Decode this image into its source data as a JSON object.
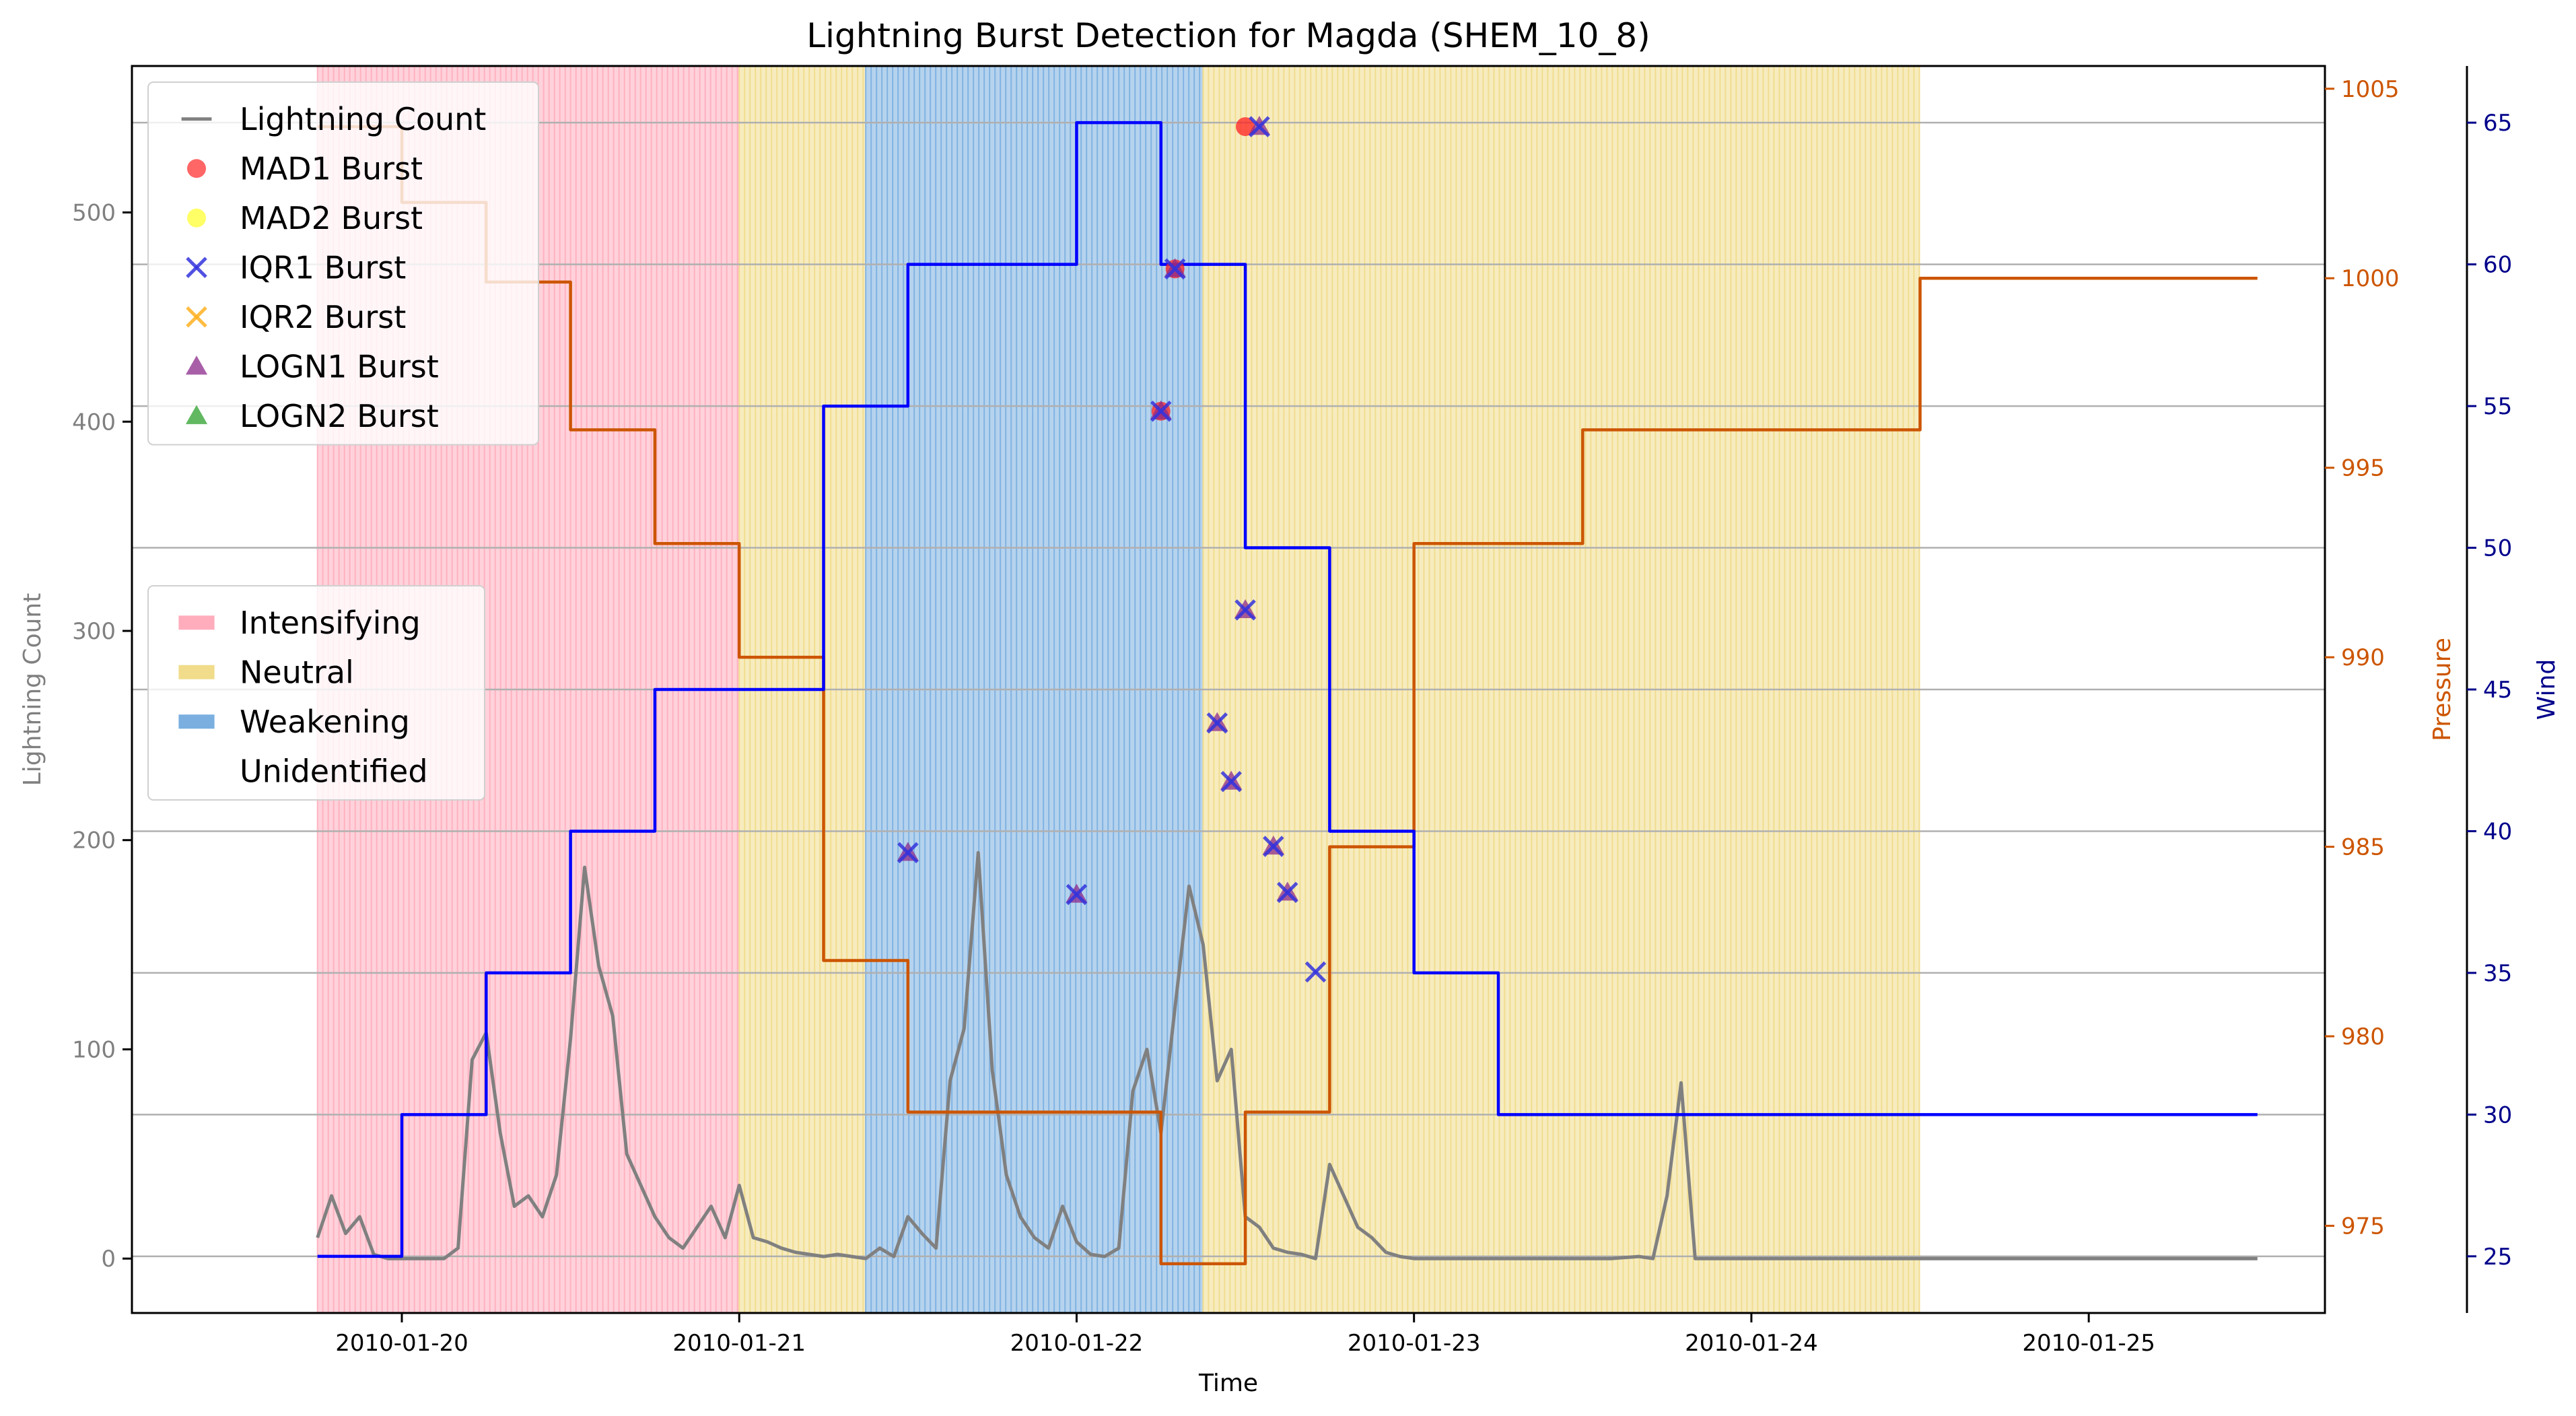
{
  "chart_data": {
    "type": "line",
    "title": "Lightning Burst Detection for Magda (SHEM_10_8)",
    "xlabel": "Time",
    "x_range": [
      "2010-01-19 04:48",
      "2010-01-25 16:48"
    ],
    "x_ticks": [
      "2010-01-20",
      "2010-01-21",
      "2010-01-22",
      "2010-01-23",
      "2010-01-24",
      "2010-01-25"
    ],
    "grid": "horizontal",
    "axes": {
      "left": {
        "label": "Lightning Count",
        "ylim": [
          -26,
          570
        ],
        "ticks": [
          0,
          100,
          200,
          300,
          400,
          500
        ],
        "color": "#808080"
      },
      "right1": {
        "label": "Pressure",
        "ylim": [
          972.7,
          1005.6
        ],
        "ticks": [
          975,
          980,
          985,
          990,
          995,
          1000,
          1005
        ],
        "color": "#cc5500"
      },
      "right2": {
        "label": "Wind",
        "ylim": [
          23.0,
          67.0
        ],
        "ticks": [
          25,
          30,
          35,
          40,
          45,
          50,
          55,
          60,
          65
        ],
        "color": "#00008b"
      }
    },
    "regimes": [
      {
        "label": "Intensifying",
        "start": "2010-01-19 18:00",
        "end": "2010-01-21 00:00",
        "color": "#ffadbd"
      },
      {
        "label": "Neutral",
        "start": "2010-01-21 00:00",
        "end": "2010-01-21 09:00",
        "color": "#f0dc8a"
      },
      {
        "label": "Weakening",
        "start": "2010-01-21 09:00",
        "end": "2010-01-22 09:00",
        "color": "#7aafe0"
      },
      {
        "label": "Neutral",
        "start": "2010-01-22 09:00",
        "end": "2010-01-24 12:00",
        "color": "#f0dc8a"
      }
    ],
    "series": [
      {
        "name": "Lightning Count",
        "axis": "left",
        "color": "#808080",
        "x": [
          "2010-01-19 18:00",
          "2010-01-19 19:00",
          "2010-01-19 20:00",
          "2010-01-19 21:00",
          "2010-01-19 22:00",
          "2010-01-19 23:00",
          "2010-01-20 00:00",
          "2010-01-20 01:00",
          "2010-01-20 02:00",
          "2010-01-20 03:00",
          "2010-01-20 04:00",
          "2010-01-20 05:00",
          "2010-01-20 06:00",
          "2010-01-20 07:00",
          "2010-01-20 08:00",
          "2010-01-20 09:00",
          "2010-01-20 10:00",
          "2010-01-20 11:00",
          "2010-01-20 12:00",
          "2010-01-20 13:00",
          "2010-01-20 14:00",
          "2010-01-20 15:00",
          "2010-01-20 16:00",
          "2010-01-20 17:00",
          "2010-01-20 18:00",
          "2010-01-20 19:00",
          "2010-01-20 20:00",
          "2010-01-20 21:00",
          "2010-01-20 22:00",
          "2010-01-20 23:00",
          "2010-01-21 00:00",
          "2010-01-21 01:00",
          "2010-01-21 02:00",
          "2010-01-21 03:00",
          "2010-01-21 04:00",
          "2010-01-21 05:00",
          "2010-01-21 06:00",
          "2010-01-21 07:00",
          "2010-01-21 08:00",
          "2010-01-21 09:00",
          "2010-01-21 10:00",
          "2010-01-21 11:00",
          "2010-01-21 12:00",
          "2010-01-21 13:00",
          "2010-01-21 14:00",
          "2010-01-21 15:00",
          "2010-01-21 16:00",
          "2010-01-21 17:00",
          "2010-01-21 18:00",
          "2010-01-21 19:00",
          "2010-01-21 20:00",
          "2010-01-21 21:00",
          "2010-01-21 22:00",
          "2010-01-21 23:00",
          "2010-01-22 00:00",
          "2010-01-22 01:00",
          "2010-01-22 02:00",
          "2010-01-22 03:00",
          "2010-01-22 04:00",
          "2010-01-22 05:00",
          "2010-01-22 06:00",
          "2010-01-22 07:00",
          "2010-01-22 08:00",
          "2010-01-22 09:00",
          "2010-01-22 10:00",
          "2010-01-22 11:00",
          "2010-01-22 12:00",
          "2010-01-22 13:00",
          "2010-01-22 14:00",
          "2010-01-22 15:00",
          "2010-01-22 16:00",
          "2010-01-22 17:00",
          "2010-01-22 18:00",
          "2010-01-22 19:00",
          "2010-01-22 20:00",
          "2010-01-22 21:00",
          "2010-01-22 22:00",
          "2010-01-22 23:00",
          "2010-01-23 00:00",
          "2010-01-23 06:00",
          "2010-01-23 12:00",
          "2010-01-23 14:00",
          "2010-01-23 16:00",
          "2010-01-23 17:00",
          "2010-01-23 18:00",
          "2010-01-23 19:00",
          "2010-01-23 20:00",
          "2010-01-24 00:00",
          "2010-01-24 12:00",
          "2010-01-25 00:00",
          "2010-01-25 12:00"
        ],
        "values": [
          10,
          30,
          12,
          20,
          2,
          0,
          0,
          0,
          0,
          0,
          5,
          95,
          108,
          60,
          25,
          30,
          20,
          40,
          105,
          187,
          140,
          116,
          50,
          35,
          20,
          10,
          5,
          15,
          25,
          10,
          35,
          10,
          8,
          5,
          3,
          2,
          1,
          2,
          1,
          0,
          5,
          1,
          20,
          12,
          5,
          85,
          110,
          194,
          90,
          40,
          20,
          10,
          5,
          25,
          8,
          2,
          1,
          5,
          80,
          100,
          60,
          120,
          178,
          150,
          85,
          100,
          20,
          15,
          5,
          3,
          2,
          0,
          45,
          30,
          15,
          10,
          3,
          1,
          0,
          0,
          0,
          0,
          1,
          0,
          30,
          84,
          0,
          0,
          0,
          0,
          0
        ]
      },
      {
        "name": "Pressure",
        "axis": "right1",
        "color": "#cc5500",
        "step": true,
        "x": [
          "2010-01-19 18:00",
          "2010-01-20 00:00",
          "2010-01-20 06:00",
          "2010-01-20 12:00",
          "2010-01-20 18:00",
          "2010-01-21 00:00",
          "2010-01-21 06:00",
          "2010-01-21 12:00",
          "2010-01-21 18:00",
          "2010-01-22 00:00",
          "2010-01-22 06:00",
          "2010-01-22 12:00",
          "2010-01-22 18:00",
          "2010-01-23 00:00",
          "2010-01-23 06:00",
          "2010-01-23 12:00",
          "2010-01-24 00:00",
          "2010-01-24 12:00",
          "2010-01-25 00:00",
          "2010-01-25 12:00"
        ],
        "values": [
          1004,
          1002,
          999.9,
          996,
          993,
          990,
          982,
          978,
          978,
          978,
          974,
          978,
          985,
          993,
          993,
          996,
          996,
          1000,
          1000,
          1000
        ]
      },
      {
        "name": "Wind",
        "axis": "right2",
        "color": "#0000ff",
        "step": true,
        "x": [
          "2010-01-19 18:00",
          "2010-01-20 00:00",
          "2010-01-20 06:00",
          "2010-01-20 12:00",
          "2010-01-20 18:00",
          "2010-01-21 00:00",
          "2010-01-21 06:00",
          "2010-01-21 12:00",
          "2010-01-21 18:00",
          "2010-01-22 00:00",
          "2010-01-22 06:00",
          "2010-01-22 12:00",
          "2010-01-22 18:00",
          "2010-01-23 00:00",
          "2010-01-23 06:00",
          "2010-01-23 12:00",
          "2010-01-24 00:00",
          "2010-01-24 12:00",
          "2010-01-25 00:00",
          "2010-01-25 12:00"
        ],
        "values": [
          25,
          30,
          35,
          40,
          45,
          45,
          55,
          60,
          60,
          65,
          60,
          50,
          40,
          35,
          30,
          30,
          30,
          30,
          30,
          30
        ]
      }
    ],
    "bursts": {
      "MAD1": {
        "name": "MAD1 Burst",
        "color": "#ff2020",
        "marker": "circle",
        "x": [
          "2010-01-22 06:00",
          "2010-01-22 07:00",
          "2010-01-22 12:00"
        ],
        "values": [
          405,
          473,
          541
        ]
      },
      "IQR1": {
        "name": "IQR1 Burst",
        "color": "#3333dd",
        "marker": "x",
        "x": [
          "2010-01-21 12:00",
          "2010-01-22 00:00",
          "2010-01-22 06:00",
          "2010-01-22 07:00",
          "2010-01-22 10:00",
          "2010-01-22 11:00",
          "2010-01-22 12:00",
          "2010-01-22 13:00",
          "2010-01-22 14:00",
          "2010-01-22 15:00",
          "2010-01-22 17:00"
        ],
        "values": [
          194,
          174,
          405,
          473,
          256,
          228,
          310,
          541,
          197,
          175,
          137
        ]
      },
      "LOGN1": {
        "name": "LOGN1 Burst",
        "color": "#8b2a8b",
        "marker": "triangle",
        "x": [
          "2010-01-21 12:00",
          "2010-01-22 00:00",
          "2010-01-22 06:00",
          "2010-01-22 07:00",
          "2010-01-22 10:00",
          "2010-01-22 11:00",
          "2010-01-22 12:00",
          "2010-01-22 13:00",
          "2010-01-22 14:00",
          "2010-01-22 15:00"
        ],
        "values": [
          194,
          174,
          405,
          473,
          256,
          228,
          310,
          541,
          197,
          175
        ]
      }
    },
    "legend1": {
      "placement": "top-left",
      "entries": [
        {
          "label": "Lightning Count",
          "kind": "line",
          "color": "#808080"
        },
        {
          "label": "MAD1 Burst",
          "kind": "circle",
          "color": "#ff3333"
        },
        {
          "label": "MAD2 Burst",
          "kind": "circle",
          "color": "#ffff33"
        },
        {
          "label": "IQR1 Burst",
          "kind": "x",
          "color": "#3333dd"
        },
        {
          "label": "IQR2 Burst",
          "kind": "x",
          "color": "#ffb020"
        },
        {
          "label": "LOGN1 Burst",
          "kind": "triangle",
          "color": "#8b2a8b"
        },
        {
          "label": "LOGN2 Burst",
          "kind": "triangle",
          "color": "#2ca02c"
        }
      ]
    },
    "legend2": {
      "placement": "center-left",
      "entries": [
        {
          "label": "Intensifying",
          "kind": "patch",
          "color": "#ffadbd"
        },
        {
          "label": "Neutral",
          "kind": "patch",
          "color": "#f0dc8a"
        },
        {
          "label": "Weakening",
          "kind": "patch",
          "color": "#7aafe0"
        },
        {
          "label": "Unidentified",
          "kind": "patch",
          "color": "#ffffff"
        }
      ]
    }
  }
}
